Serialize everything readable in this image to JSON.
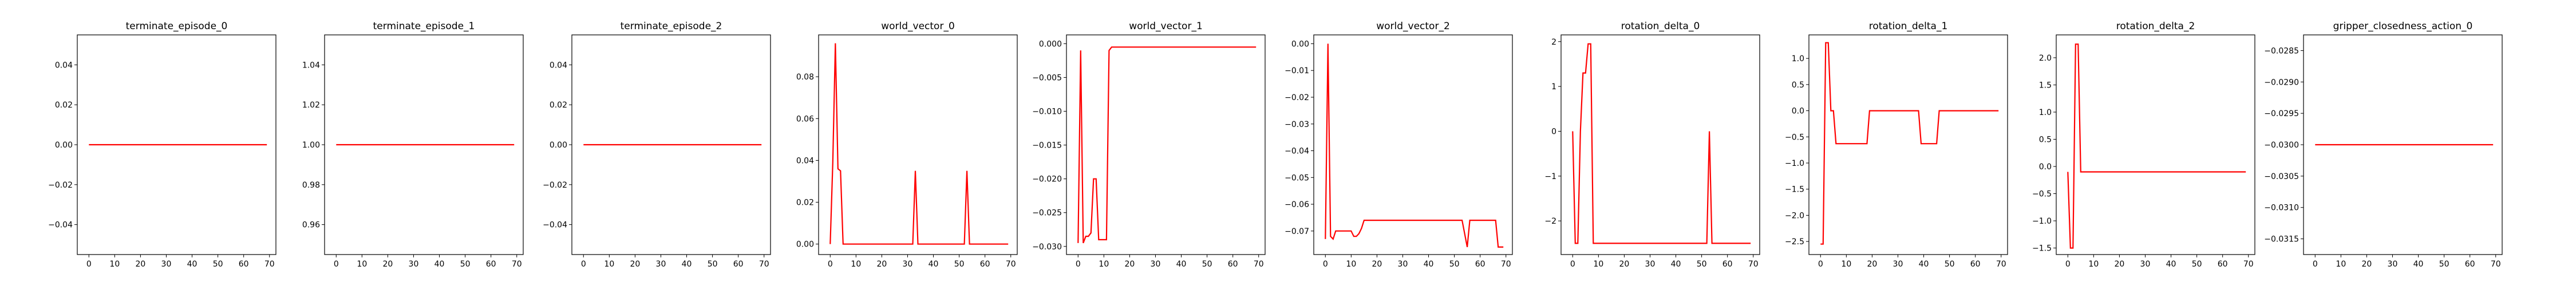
{
  "line_color": "#ff0000",
  "chart_data": [
    {
      "type": "line",
      "title": "terminate_episode_0",
      "xlim": [
        -4.5,
        72.5
      ],
      "ylim": [
        -0.055,
        0.055
      ],
      "xticks": [
        0,
        10,
        20,
        30,
        40,
        50,
        60,
        70
      ],
      "yticks": [
        -0.04,
        -0.02,
        0.0,
        0.02,
        0.04
      ],
      "ytick_labels": [
        "−0.04",
        "−0.02",
        "0.00",
        "0.02",
        "0.04"
      ],
      "series": [
        {
          "x": [
            0,
            69
          ],
          "y": [
            0,
            0
          ]
        }
      ]
    },
    {
      "type": "line",
      "title": "terminate_episode_1",
      "xlim": [
        -4.5,
        72.5
      ],
      "ylim": [
        0.945,
        1.055
      ],
      "xticks": [
        0,
        10,
        20,
        30,
        40,
        50,
        60,
        70
      ],
      "yticks": [
        0.96,
        0.98,
        1.0,
        1.02,
        1.04
      ],
      "ytick_labels": [
        "0.96",
        "0.98",
        "1.00",
        "1.02",
        "1.04"
      ],
      "series": [
        {
          "x": [
            0,
            69
          ],
          "y": [
            1,
            1
          ]
        }
      ]
    },
    {
      "type": "line",
      "title": "terminate_episode_2",
      "xlim": [
        -4.5,
        72.5
      ],
      "ylim": [
        -0.055,
        0.055
      ],
      "xticks": [
        0,
        10,
        20,
        30,
        40,
        50,
        60,
        70
      ],
      "yticks": [
        -0.04,
        -0.02,
        0.0,
        0.02,
        0.04
      ],
      "ytick_labels": [
        "−0.04",
        "−0.02",
        "0.00",
        "0.02",
        "0.04"
      ],
      "series": [
        {
          "x": [
            0,
            69
          ],
          "y": [
            0,
            0
          ]
        }
      ]
    },
    {
      "type": "line",
      "title": "world_vector_0",
      "xlim": [
        -4.5,
        72.5
      ],
      "ylim": [
        -0.005,
        0.1
      ],
      "xticks": [
        0,
        10,
        20,
        30,
        40,
        50,
        60,
        70
      ],
      "yticks": [
        0.0,
        0.02,
        0.04,
        0.06,
        0.08
      ],
      "ytick_labels": [
        "0.00",
        "0.02",
        "0.04",
        "0.06",
        "0.08"
      ],
      "series": [
        {
          "x": [
            0,
            1,
            2,
            3,
            4,
            5,
            6,
            32,
            33,
            34,
            52,
            53,
            54,
            69
          ],
          "y": [
            0.0,
            0.039,
            0.096,
            0.036,
            0.035,
            0.0,
            0.0,
            0.0,
            0.035,
            0.0,
            0.0,
            0.035,
            0.0,
            0.0
          ]
        }
      ]
    },
    {
      "type": "line",
      "title": "world_vector_1",
      "xlim": [
        -4.5,
        72.5
      ],
      "ylim": [
        -0.0312,
        0.0013
      ],
      "xticks": [
        0,
        10,
        20,
        30,
        40,
        50,
        60,
        70
      ],
      "yticks": [
        -0.03,
        -0.025,
        -0.02,
        -0.015,
        -0.01,
        -0.005,
        0.0
      ],
      "ytick_labels": [
        "−0.030",
        "−0.025",
        "−0.020",
        "−0.015",
        "−0.010",
        "−0.005",
        "0.000"
      ],
      "series": [
        {
          "x": [
            0,
            1,
            2,
            3,
            4,
            5,
            6,
            7,
            8,
            9,
            10,
            11,
            12,
            13,
            69
          ],
          "y": [
            -0.0295,
            -0.001,
            -0.0295,
            -0.0285,
            -0.0285,
            -0.028,
            -0.02,
            -0.02,
            -0.029,
            -0.029,
            -0.029,
            -0.029,
            -0.001,
            -0.0005,
            -0.0005
          ]
        }
      ]
    },
    {
      "type": "line",
      "title": "world_vector_2",
      "xlim": [
        -4.5,
        72.5
      ],
      "ylim": [
        -0.0788,
        0.0033
      ],
      "xticks": [
        0,
        10,
        20,
        30,
        40,
        50,
        60,
        70
      ],
      "yticks": [
        -0.07,
        -0.06,
        -0.05,
        -0.04,
        -0.03,
        -0.02,
        -0.01,
        0.0
      ],
      "ytick_labels": [
        "−0.07",
        "−0.06",
        "−0.05",
        "−0.04",
        "−0.03",
        "−0.02",
        "−0.01",
        "0.00"
      ],
      "series": [
        {
          "x": [
            0,
            1,
            2,
            3,
            4,
            5,
            6,
            7,
            8,
            9,
            10,
            11,
            12,
            13,
            14,
            15,
            16,
            53,
            54,
            55,
            56,
            57,
            58,
            59,
            60,
            61,
            62,
            63,
            64,
            65,
            66,
            67,
            68,
            69
          ],
          "y": [
            -0.073,
            0.0,
            -0.072,
            -0.073,
            -0.07,
            -0.07,
            -0.07,
            -0.07,
            -0.07,
            -0.07,
            -0.07,
            -0.072,
            -0.072,
            -0.071,
            -0.069,
            -0.066,
            -0.066,
            -0.066,
            -0.071,
            -0.076,
            -0.066,
            -0.066,
            -0.066,
            -0.066,
            -0.066,
            -0.066,
            -0.066,
            -0.066,
            -0.066,
            -0.066,
            -0.066,
            -0.076,
            -0.076,
            -0.076
          ]
        }
      ]
    },
    {
      "type": "line",
      "title": "rotation_delta_0",
      "xlim": [
        -4.5,
        72.5
      ],
      "ylim": [
        -2.75,
        2.15
      ],
      "xticks": [
        0,
        10,
        20,
        30,
        40,
        50,
        60,
        70
      ],
      "yticks": [
        -2,
        -1,
        0,
        1,
        2
      ],
      "ytick_labels": [
        "−2",
        "−1",
        "0",
        "1",
        "2"
      ],
      "series": [
        {
          "x": [
            0,
            1,
            2,
            3,
            4,
            5,
            6,
            7,
            8,
            9,
            52,
            53,
            54,
            69
          ],
          "y": [
            0.0,
            -2.5,
            -2.5,
            0.0,
            1.3,
            1.3,
            1.95,
            1.95,
            -2.5,
            -2.5,
            -2.5,
            0.0,
            -2.5,
            -2.5
          ]
        }
      ]
    },
    {
      "type": "line",
      "title": "rotation_delta_1",
      "xlim": [
        -4.5,
        72.5
      ],
      "ylim": [
        -2.75,
        1.45
      ],
      "xticks": [
        0,
        10,
        20,
        30,
        40,
        50,
        60,
        70
      ],
      "yticks": [
        -2.5,
        -2.0,
        -1.5,
        -1.0,
        -0.5,
        0.0,
        0.5,
        1.0
      ],
      "ytick_labels": [
        "−2.5",
        "−2.0",
        "−1.5",
        "−1.0",
        "−0.5",
        "0.0",
        "0.5",
        "1.0"
      ],
      "series": [
        {
          "x": [
            0,
            1,
            2,
            3,
            4,
            5,
            6,
            7,
            18,
            19,
            38,
            39,
            45,
            46,
            69
          ],
          "y": [
            -2.55,
            -2.55,
            1.3,
            1.3,
            0.0,
            0.0,
            -0.63,
            -0.63,
            -0.63,
            0.0,
            0.0,
            -0.63,
            -0.63,
            0.0,
            0.0
          ]
        }
      ]
    },
    {
      "type": "line",
      "title": "rotation_delta_2",
      "xlim": [
        -4.5,
        72.5
      ],
      "ylim": [
        -1.62,
        2.42
      ],
      "xticks": [
        0,
        10,
        20,
        30,
        40,
        50,
        60,
        70
      ],
      "yticks": [
        -1.5,
        -1.0,
        -0.5,
        0.0,
        0.5,
        1.0,
        1.5,
        2.0
      ],
      "ytick_labels": [
        "−1.5",
        "−1.0",
        "−0.5",
        "0.0",
        "0.5",
        "1.0",
        "1.5",
        "2.0"
      ],
      "series": [
        {
          "x": [
            0,
            1,
            2,
            3,
            4,
            5,
            6,
            69
          ],
          "y": [
            -0.1,
            -1.5,
            -1.5,
            2.25,
            2.25,
            -0.1,
            -0.1,
            -0.1
          ]
        }
      ]
    },
    {
      "type": "line",
      "title": "gripper_closedness_action_0",
      "xlim": [
        -4.5,
        72.5
      ],
      "ylim": [
        -0.03175,
        -0.02825
      ],
      "xticks": [
        0,
        10,
        20,
        30,
        40,
        50,
        60,
        70
      ],
      "yticks": [
        -0.0315,
        -0.031,
        -0.0305,
        -0.03,
        -0.0295,
        -0.029,
        -0.0285
      ],
      "ytick_labels": [
        "−0.0315",
        "−0.0310",
        "−0.0305",
        "−0.0300",
        "−0.0295",
        "−0.0290",
        "−0.0285"
      ],
      "series": [
        {
          "x": [
            0,
            69
          ],
          "y": [
            -0.03,
            -0.03
          ]
        }
      ]
    }
  ]
}
